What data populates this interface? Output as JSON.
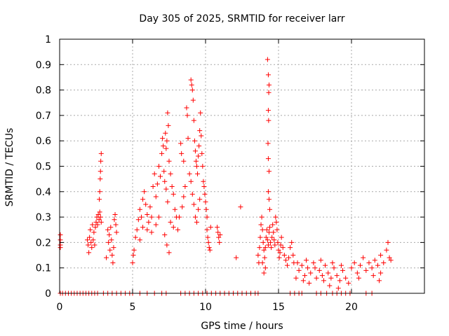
{
  "chart_data": {
    "type": "scatter",
    "title": "Day 305 of 2025, SRMTID for receiver larr",
    "xlabel": "GPS time / hours",
    "ylabel": "SRMTID / TECUs",
    "xlim": [
      0,
      25
    ],
    "ylim": [
      0,
      1
    ],
    "xticks": [
      0,
      5,
      10,
      15,
      20
    ],
    "xtick_labels": [
      "0",
      "5",
      "10",
      "15",
      "20"
    ],
    "yticks": [
      0,
      0.1,
      0.2,
      0.3,
      0.4,
      0.5,
      0.6,
      0.7,
      0.8,
      0.9,
      1
    ],
    "ytick_labels": [
      "0",
      "0.1",
      "0.2",
      "0.3",
      "0.4",
      "0.5",
      "0.6",
      "0.7",
      "0.8",
      "0.9",
      "1"
    ],
    "grid": true,
    "marker": "+",
    "series": [
      {
        "name": "SRMTID",
        "color": "#ff0000",
        "points": [
          [
            0.05,
            0.23
          ],
          [
            0.05,
            0.21
          ],
          [
            0.05,
            0.19
          ],
          [
            0.05,
            0.18
          ],
          [
            1.9,
            0.21
          ],
          [
            1.95,
            0.19
          ],
          [
            2.0,
            0.16
          ],
          [
            2.05,
            0.22
          ],
          [
            2.1,
            0.25
          ],
          [
            2.15,
            0.2
          ],
          [
            2.2,
            0.18
          ],
          [
            2.25,
            0.27
          ],
          [
            2.3,
            0.21
          ],
          [
            2.35,
            0.24
          ],
          [
            2.4,
            0.19
          ],
          [
            2.45,
            0.26
          ],
          [
            2.5,
            0.28
          ],
          [
            2.55,
            0.3
          ],
          [
            2.6,
            0.27
          ],
          [
            2.65,
            0.31
          ],
          [
            2.7,
            0.29
          ],
          [
            2.75,
            0.32
          ],
          [
            2.8,
            0.3
          ],
          [
            2.85,
            0.28
          ],
          [
            2.72,
            0.37
          ],
          [
            2.75,
            0.4
          ],
          [
            2.78,
            0.45
          ],
          [
            2.8,
            0.48
          ],
          [
            2.82,
            0.52
          ],
          [
            2.85,
            0.55
          ],
          [
            3.3,
            0.25
          ],
          [
            3.35,
            0.2
          ],
          [
            3.4,
            0.23
          ],
          [
            3.45,
            0.17
          ],
          [
            3.5,
            0.26
          ],
          [
            3.55,
            0.21
          ],
          [
            3.6,
            0.15
          ],
          [
            3.65,
            0.12
          ],
          [
            3.7,
            0.18
          ],
          [
            3.75,
            0.29
          ],
          [
            3.8,
            0.31
          ],
          [
            3.85,
            0.27
          ],
          [
            3.9,
            0.24
          ],
          [
            3.2,
            0.14
          ],
          [
            5.0,
            0.12
          ],
          [
            5.05,
            0.15
          ],
          [
            5.1,
            0.17
          ],
          [
            5.2,
            0.22
          ],
          [
            5.3,
            0.25
          ],
          [
            5.4,
            0.29
          ],
          [
            5.5,
            0.33
          ],
          [
            5.6,
            0.3
          ],
          [
            5.7,
            0.37
          ],
          [
            5.8,
            0.4
          ],
          [
            5.9,
            0.35
          ],
          [
            6.0,
            0.31
          ],
          [
            6.1,
            0.28
          ],
          [
            6.2,
            0.34
          ],
          [
            6.3,
            0.3
          ],
          [
            6.4,
            0.42
          ],
          [
            6.5,
            0.47
          ],
          [
            6.6,
            0.38
          ],
          [
            6.7,
            0.43
          ],
          [
            6.8,
            0.5
          ],
          [
            6.9,
            0.46
          ],
          [
            7.0,
            0.55
          ],
          [
            7.05,
            0.61
          ],
          [
            7.1,
            0.58
          ],
          [
            7.15,
            0.48
          ],
          [
            7.2,
            0.44
          ],
          [
            7.3,
            0.41
          ],
          [
            7.4,
            0.36
          ],
          [
            7.5,
            0.52
          ],
          [
            7.6,
            0.47
          ],
          [
            7.7,
            0.42
          ],
          [
            7.8,
            0.39
          ],
          [
            7.9,
            0.33
          ],
          [
            8.0,
            0.3
          ],
          [
            5.5,
            0.21
          ],
          [
            5.7,
            0.26
          ],
          [
            6.0,
            0.25
          ],
          [
            6.3,
            0.24
          ],
          [
            6.6,
            0.27
          ],
          [
            6.8,
            0.3
          ],
          [
            7.2,
            0.23
          ],
          [
            7.6,
            0.28
          ],
          [
            7.8,
            0.26
          ],
          [
            8.1,
            0.25
          ],
          [
            7.5,
            0.16
          ],
          [
            7.35,
            0.19
          ],
          [
            7.3,
            0.57
          ],
          [
            7.35,
            0.6
          ],
          [
            7.25,
            0.63
          ],
          [
            7.4,
            0.71
          ],
          [
            7.45,
            0.66
          ],
          [
            8.3,
            0.59
          ],
          [
            8.35,
            0.55
          ],
          [
            8.5,
            0.52
          ],
          [
            8.7,
            0.73
          ],
          [
            8.75,
            0.7
          ],
          [
            8.8,
            0.61
          ],
          [
            9.0,
            0.84
          ],
          [
            9.05,
            0.82
          ],
          [
            9.1,
            0.8
          ],
          [
            9.15,
            0.76
          ],
          [
            9.2,
            0.68
          ],
          [
            9.25,
            0.6
          ],
          [
            9.3,
            0.56
          ],
          [
            9.35,
            0.52
          ],
          [
            9.4,
            0.5
          ],
          [
            9.45,
            0.47
          ],
          [
            9.5,
            0.54
          ],
          [
            9.55,
            0.58
          ],
          [
            9.6,
            0.64
          ],
          [
            9.65,
            0.71
          ],
          [
            9.7,
            0.62
          ],
          [
            9.75,
            0.55
          ],
          [
            9.8,
            0.5
          ],
          [
            9.85,
            0.44
          ],
          [
            9.9,
            0.42
          ],
          [
            9.95,
            0.39
          ],
          [
            10.0,
            0.36
          ],
          [
            10.05,
            0.33
          ],
          [
            10.1,
            0.3
          ],
          [
            8.9,
            0.47
          ],
          [
            9.0,
            0.44
          ],
          [
            9.1,
            0.39
          ],
          [
            9.2,
            0.35
          ],
          [
            9.3,
            0.3
          ],
          [
            9.4,
            0.28
          ],
          [
            9.5,
            0.33
          ],
          [
            9.6,
            0.37
          ],
          [
            8.6,
            0.42
          ],
          [
            8.5,
            0.38
          ],
          [
            8.4,
            0.34
          ],
          [
            8.2,
            0.3
          ],
          [
            10.1,
            0.25
          ],
          [
            10.15,
            0.22
          ],
          [
            10.2,
            0.2
          ],
          [
            10.25,
            0.18
          ],
          [
            10.3,
            0.17
          ],
          [
            10.35,
            0.26
          ],
          [
            10.8,
            0.26
          ],
          [
            10.85,
            0.24
          ],
          [
            10.9,
            0.22
          ],
          [
            10.95,
            0.2
          ],
          [
            11.0,
            0.23
          ],
          [
            12.1,
            0.14
          ],
          [
            12.4,
            0.34
          ],
          [
            13.6,
            0.15
          ],
          [
            13.65,
            0.12
          ],
          [
            13.7,
            0.18
          ],
          [
            13.75,
            0.22
          ],
          [
            13.8,
            0.27
          ],
          [
            13.85,
            0.3
          ],
          [
            13.9,
            0.25
          ],
          [
            13.95,
            0.2
          ],
          [
            14.0,
            0.17
          ],
          [
            14.05,
            0.14
          ],
          [
            14.1,
            0.18
          ],
          [
            14.15,
            0.22
          ],
          [
            14.2,
            0.25
          ],
          [
            14.25,
            0.21
          ],
          [
            14.3,
            0.19
          ],
          [
            14.35,
            0.24
          ],
          [
            14.4,
            0.26
          ],
          [
            14.45,
            0.2
          ],
          [
            14.5,
            0.18
          ],
          [
            14.55,
            0.22
          ],
          [
            14.6,
            0.27
          ],
          [
            14.65,
            0.24
          ],
          [
            14.7,
            0.21
          ],
          [
            14.75,
            0.19
          ],
          [
            14.8,
            0.3
          ],
          [
            14.85,
            0.28
          ],
          [
            14.9,
            0.25
          ],
          [
            14.95,
            0.2
          ],
          [
            15.0,
            0.17
          ],
          [
            15.05,
            0.14
          ],
          [
            15.1,
            0.16
          ],
          [
            15.15,
            0.19
          ],
          [
            15.2,
            0.22
          ],
          [
            15.3,
            0.18
          ],
          [
            15.4,
            0.15
          ],
          [
            15.5,
            0.13
          ],
          [
            15.6,
            0.11
          ],
          [
            15.7,
            0.14
          ],
          [
            15.8,
            0.18
          ],
          [
            15.9,
            0.2
          ],
          [
            16.0,
            0.15
          ],
          [
            16.05,
            0.12
          ],
          [
            14.0,
            0.08
          ],
          [
            14.1,
            0.1
          ],
          [
            13.9,
            0.12
          ],
          [
            14.25,
            0.92
          ],
          [
            14.3,
            0.86
          ],
          [
            14.35,
            0.82
          ],
          [
            14.33,
            0.79
          ],
          [
            14.3,
            0.72
          ],
          [
            14.32,
            0.68
          ],
          [
            14.28,
            0.59
          ],
          [
            14.3,
            0.53
          ],
          [
            14.35,
            0.48
          ],
          [
            14.3,
            0.4
          ],
          [
            14.35,
            0.37
          ],
          [
            14.4,
            0.33
          ],
          [
            16.2,
            0.06
          ],
          [
            16.4,
            0.09
          ],
          [
            16.6,
            0.11
          ],
          [
            16.8,
            0.07
          ],
          [
            17.0,
            0.1
          ],
          [
            17.2,
            0.08
          ],
          [
            17.4,
            0.12
          ],
          [
            17.6,
            0.06
          ],
          [
            17.8,
            0.09
          ],
          [
            18.0,
            0.07
          ],
          [
            18.2,
            0.11
          ],
          [
            18.4,
            0.08
          ],
          [
            18.6,
            0.06
          ],
          [
            18.8,
            0.1
          ],
          [
            19.0,
            0.07
          ],
          [
            19.2,
            0.05
          ],
          [
            19.4,
            0.09
          ],
          [
            19.6,
            0.06
          ],
          [
            19.8,
            0.04
          ],
          [
            16.3,
            0.12
          ],
          [
            16.9,
            0.13
          ],
          [
            17.5,
            0.1
          ],
          [
            18.1,
            0.05
          ],
          [
            18.7,
            0.12
          ],
          [
            19.3,
            0.11
          ],
          [
            17.1,
            0.04
          ],
          [
            18.5,
            0.03
          ],
          [
            19.1,
            0.02
          ],
          [
            16.7,
            0.05
          ],
          [
            17.9,
            0.13
          ],
          [
            20.0,
            0.1
          ],
          [
            20.2,
            0.12
          ],
          [
            20.4,
            0.08
          ],
          [
            20.6,
            0.11
          ],
          [
            20.8,
            0.14
          ],
          [
            21.0,
            0.09
          ],
          [
            21.2,
            0.12
          ],
          [
            21.4,
            0.1
          ],
          [
            21.6,
            0.13
          ],
          [
            21.8,
            0.11
          ],
          [
            22.0,
            0.15
          ],
          [
            22.2,
            0.12
          ],
          [
            22.4,
            0.17
          ],
          [
            22.5,
            0.2
          ],
          [
            22.6,
            0.14
          ],
          [
            22.7,
            0.13
          ],
          [
            22.0,
            0.08
          ],
          [
            21.5,
            0.07
          ],
          [
            20.5,
            0.06
          ],
          [
            21.9,
            0.05
          ],
          [
            0.05,
            0.0
          ],
          [
            0.2,
            0.0
          ],
          [
            0.4,
            0.0
          ],
          [
            0.6,
            0.0
          ],
          [
            0.8,
            0.0
          ],
          [
            1.0,
            0.0
          ],
          [
            1.2,
            0.0
          ],
          [
            1.4,
            0.0
          ],
          [
            1.6,
            0.0
          ],
          [
            1.8,
            0.0
          ],
          [
            2.0,
            0.0
          ],
          [
            2.2,
            0.0
          ],
          [
            2.4,
            0.0
          ],
          [
            2.6,
            0.0
          ],
          [
            3.0,
            0.0
          ],
          [
            3.3,
            0.0
          ],
          [
            3.6,
            0.0
          ],
          [
            3.9,
            0.0
          ],
          [
            4.2,
            0.0
          ],
          [
            4.5,
            0.0
          ],
          [
            4.8,
            0.0
          ],
          [
            5.0,
            0.0
          ],
          [
            5.5,
            0.0
          ],
          [
            6.0,
            0.0
          ],
          [
            6.5,
            0.0
          ],
          [
            7.0,
            0.0
          ],
          [
            7.3,
            0.0
          ],
          [
            8.3,
            0.0
          ],
          [
            8.6,
            0.0
          ],
          [
            8.9,
            0.0
          ],
          [
            9.2,
            0.0
          ],
          [
            9.5,
            0.0
          ],
          [
            9.8,
            0.0
          ],
          [
            10.1,
            0.0
          ],
          [
            10.4,
            0.0
          ],
          [
            10.7,
            0.0
          ],
          [
            11.0,
            0.0
          ],
          [
            11.3,
            0.0
          ],
          [
            11.6,
            0.0
          ],
          [
            11.9,
            0.0
          ],
          [
            12.2,
            0.0
          ],
          [
            12.5,
            0.0
          ],
          [
            12.8,
            0.0
          ],
          [
            13.1,
            0.0
          ],
          [
            13.4,
            0.0
          ],
          [
            13.6,
            0.0
          ],
          [
            15.8,
            0.0
          ],
          [
            16.1,
            0.0
          ],
          [
            16.4,
            0.0
          ],
          [
            16.6,
            0.0
          ],
          [
            17.6,
            0.0
          ],
          [
            17.9,
            0.0
          ],
          [
            18.3,
            0.0
          ],
          [
            18.7,
            0.0
          ],
          [
            19.0,
            0.0
          ],
          [
            19.3,
            0.0
          ],
          [
            19.6,
            0.0
          ],
          [
            19.9,
            0.0
          ],
          [
            21.0,
            0.0
          ],
          [
            21.4,
            0.0
          ]
        ]
      }
    ]
  }
}
